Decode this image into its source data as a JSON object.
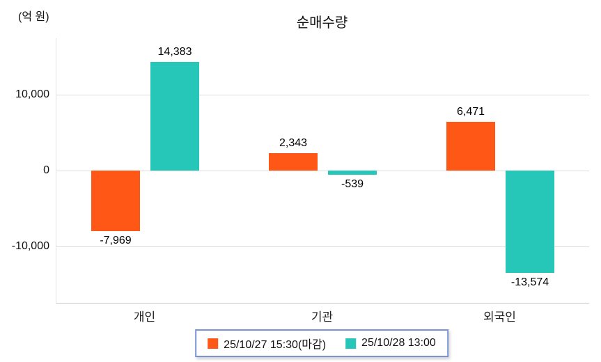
{
  "chart_data": {
    "type": "bar",
    "title": "순매수량",
    "unit_label": "(억 원)",
    "categories": [
      "개인",
      "기관",
      "외국인"
    ],
    "series": [
      {
        "name": "25/10/27 15:30(마감)",
        "color": "#FF5716",
        "values": [
          -7969,
          2343,
          6471
        ]
      },
      {
        "name": "25/10/28 13:00",
        "color": "#26C6B9",
        "values": [
          14383,
          -539,
          -13574
        ]
      }
    ],
    "value_labels": [
      [
        "-7,969",
        "2,343",
        "6,471"
      ],
      [
        "14,383",
        "-539",
        "-13,574"
      ]
    ],
    "yticks": [
      {
        "value": 10000,
        "label": "10,000"
      },
      {
        "value": 0,
        "label": "0"
      },
      {
        "value": -10000,
        "label": "-10,000"
      }
    ],
    "ylim": [
      -17500,
      17500
    ],
    "grid": true,
    "legend_position": "bottom"
  }
}
